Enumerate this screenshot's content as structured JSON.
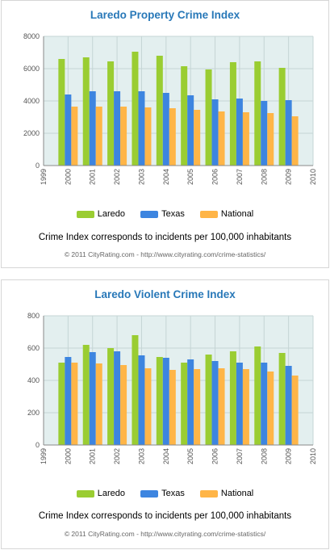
{
  "charts": [
    {
      "title": "Laredo Property Crime Index",
      "note": "Crime Index corresponds to incidents per 100,000 inhabitants",
      "credit": "© 2011 CityRating.com - http://www.cityrating.com/crime-statistics/",
      "legend": [
        "Laredo",
        "Texas",
        "National"
      ]
    },
    {
      "title": "Laredo Violent Crime Index",
      "note": "Crime Index corresponds to incidents per 100,000 inhabitants",
      "credit": "© 2011 CityRating.com - http://www.cityrating.com/crime-statistics/",
      "legend": [
        "Laredo",
        "Texas",
        "National"
      ]
    }
  ],
  "colors": {
    "Laredo": "#9acd32",
    "Texas": "#3d85e0",
    "National": "#ffb547",
    "plot_bg": "#e3efef",
    "grid": "#c5d5d5"
  },
  "chart_data": [
    {
      "type": "bar",
      "title": "Laredo Property Crime Index",
      "x_ticks": [
        "1999",
        "2000",
        "2001",
        "2002",
        "2003",
        "2004",
        "2005",
        "2006",
        "2007",
        "2008",
        "2009",
        "2010"
      ],
      "categories": [
        "2000",
        "2001",
        "2002",
        "2003",
        "2004",
        "2005",
        "2006",
        "2007",
        "2008",
        "2009"
      ],
      "y_ticks": [
        0,
        2000,
        4000,
        6000,
        8000
      ],
      "ylim": [
        0,
        8000
      ],
      "grid": true,
      "legend_position": "bottom",
      "series": [
        {
          "name": "Laredo",
          "values": [
            6600,
            6700,
            6450,
            7050,
            6800,
            6150,
            5950,
            6400,
            6450,
            6050
          ]
        },
        {
          "name": "Texas",
          "values": [
            4400,
            4600,
            4600,
            4600,
            4500,
            4350,
            4100,
            4150,
            4000,
            4050
          ]
        },
        {
          "name": "National",
          "values": [
            3650,
            3650,
            3650,
            3600,
            3550,
            3450,
            3350,
            3300,
            3250,
            3050
          ]
        }
      ]
    },
    {
      "type": "bar",
      "title": "Laredo Violent Crime Index",
      "x_ticks": [
        "1999",
        "2000",
        "2001",
        "2002",
        "2003",
        "2004",
        "2005",
        "2006",
        "2007",
        "2008",
        "2009",
        "2010"
      ],
      "categories": [
        "2000",
        "2001",
        "2002",
        "2003",
        "2004",
        "2005",
        "2006",
        "2007",
        "2008",
        "2009"
      ],
      "y_ticks": [
        0,
        200,
        400,
        600,
        800
      ],
      "ylim": [
        0,
        800
      ],
      "grid": true,
      "legend_position": "bottom",
      "series": [
        {
          "name": "Laredo",
          "values": [
            510,
            620,
            600,
            680,
            545,
            510,
            560,
            580,
            610,
            570
          ]
        },
        {
          "name": "Texas",
          "values": [
            545,
            575,
            580,
            555,
            540,
            530,
            520,
            510,
            510,
            490
          ]
        },
        {
          "name": "National",
          "values": [
            510,
            505,
            495,
            475,
            465,
            470,
            475,
            470,
            455,
            430
          ]
        }
      ]
    }
  ]
}
